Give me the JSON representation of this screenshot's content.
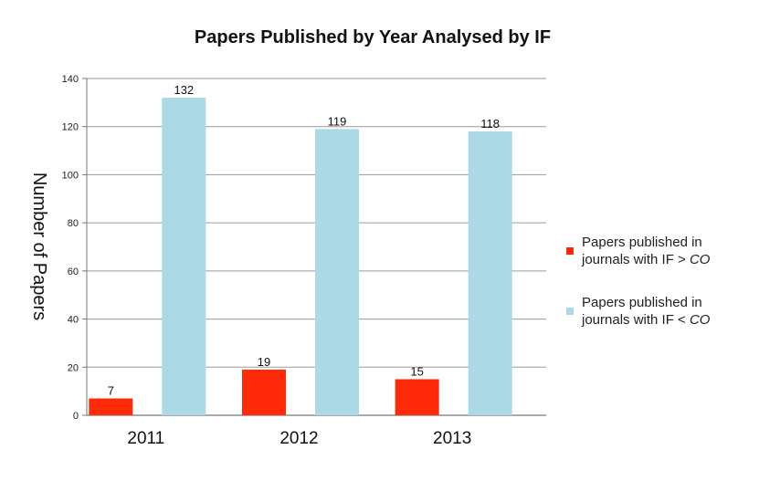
{
  "chart_data": {
    "type": "bar",
    "title": "Papers Published by Year Analysed by IF",
    "xlabel": "",
    "ylabel": "Number of Papers",
    "categories": [
      "2011",
      "2012",
      "2013"
    ],
    "ylim": [
      0,
      140
    ],
    "yticks": [
      0,
      20,
      40,
      60,
      80,
      100,
      120,
      140
    ],
    "grid": true,
    "legend_position": "right",
    "series": [
      {
        "name": "Papers published in journals with IF > CO",
        "legend_line1": "Papers published in",
        "legend_line2_prefix": "journals with IF > ",
        "legend_line2_italic": "CO",
        "color": "#ff2a0a",
        "values": [
          7,
          19,
          15
        ]
      },
      {
        "name": "Papers published in journals with IF < CO",
        "legend_line1": "Papers published in",
        "legend_line2_prefix": "journals with IF < ",
        "legend_line2_italic": "CO",
        "color": "#add8e6",
        "values": [
          132,
          119,
          118
        ]
      }
    ]
  }
}
